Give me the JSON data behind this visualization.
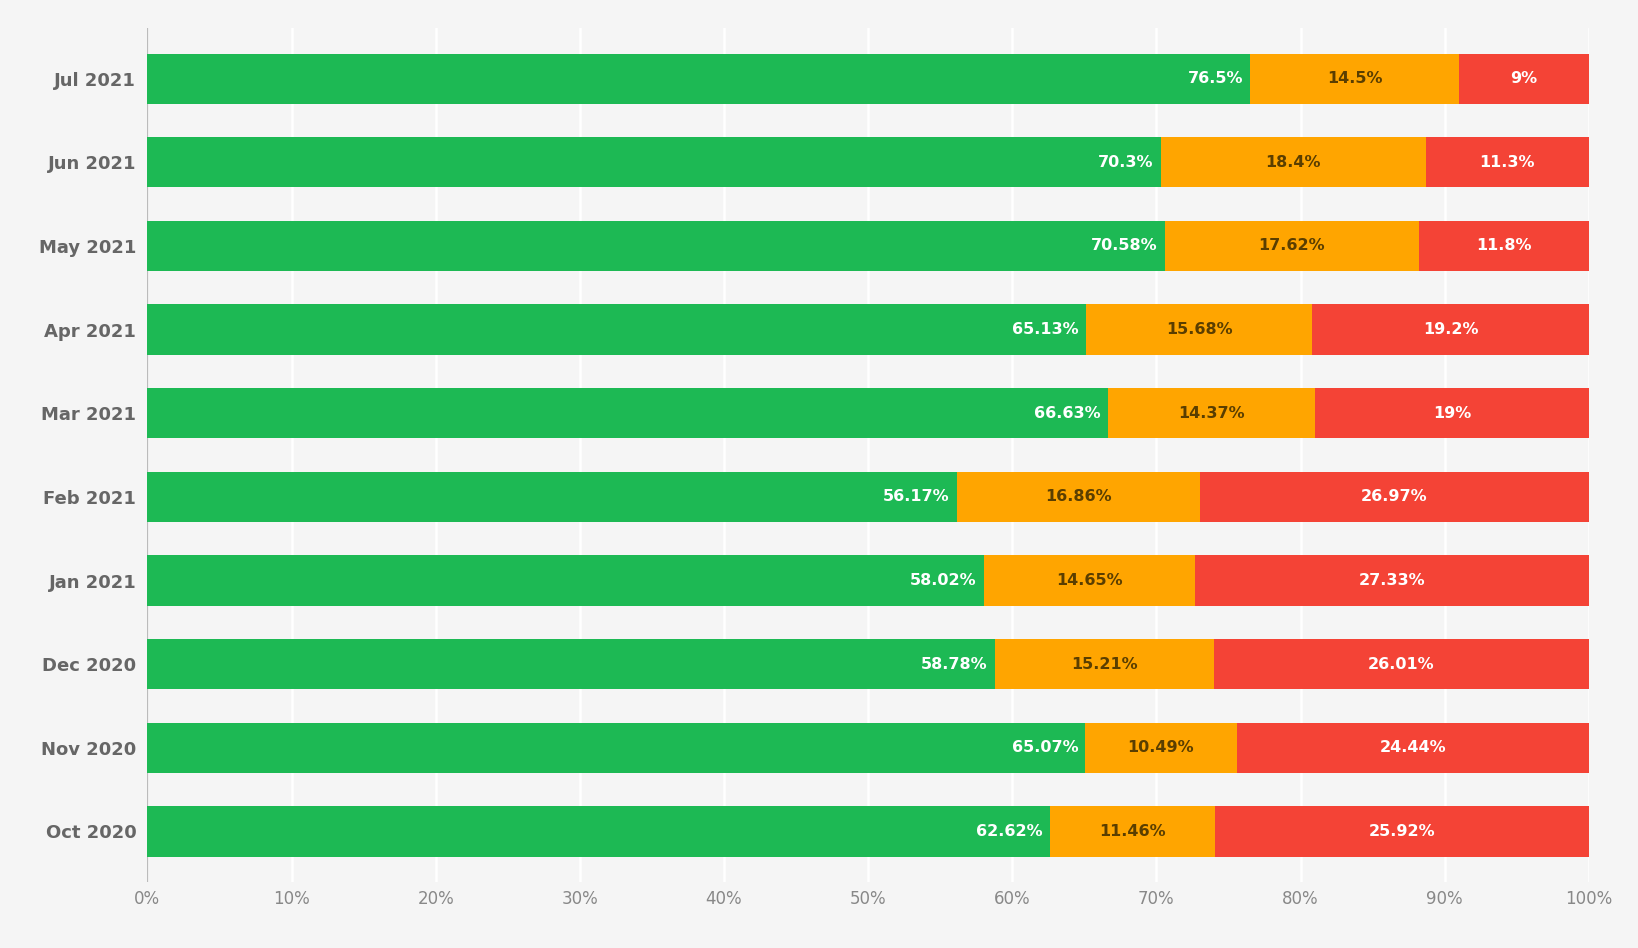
{
  "months": [
    "Oct 2020",
    "Nov 2020",
    "Dec 2020",
    "Jan 2021",
    "Feb 2021",
    "Mar 2021",
    "Apr 2021",
    "May 2021",
    "Jun 2021",
    "Jul 2021"
  ],
  "good": [
    62.62,
    65.07,
    58.78,
    58.02,
    56.17,
    66.63,
    65.13,
    70.58,
    70.3,
    76.5
  ],
  "needs_improvement": [
    11.46,
    10.49,
    15.21,
    14.65,
    16.86,
    14.37,
    15.68,
    17.62,
    18.4,
    14.5
  ],
  "poor": [
    25.92,
    24.44,
    26.01,
    27.33,
    26.97,
    19.0,
    19.2,
    11.8,
    11.3,
    9.0
  ],
  "good_labels": [
    "62.62%",
    "65.07%",
    "58.78%",
    "58.02%",
    "56.17%",
    "66.63%",
    "65.13%",
    "70.58%",
    "70.3%",
    "76.5%"
  ],
  "needs_improvement_labels": [
    "11.46%",
    "10.49%",
    "15.21%",
    "14.65%",
    "16.86%",
    "14.37%",
    "15.68%",
    "17.62%",
    "18.4%",
    "14.5%"
  ],
  "poor_labels": [
    "25.92%",
    "24.44%",
    "26.01%",
    "27.33%",
    "26.97%",
    "19%",
    "19.2%",
    "11.8%",
    "11.3%",
    "9%"
  ],
  "color_good": "#1DB954",
  "color_needs_improvement": "#FFA500",
  "color_poor": "#F44336",
  "background_color": "#F5F5F5",
  "bar_height": 0.6,
  "xlabel_ticks": [
    "0%",
    "10%",
    "20%",
    "30%",
    "40%",
    "50%",
    "60%",
    "70%",
    "80%",
    "90%",
    "100%"
  ],
  "xlabel_vals": [
    0,
    10,
    20,
    30,
    40,
    50,
    60,
    70,
    80,
    90,
    100
  ],
  "text_color_good": "#FFFFFF",
  "text_color_ni": "#5a3e00",
  "text_color_poor": "#FFFFFF",
  "label_fontsize": 11.5,
  "ytick_fontsize": 13,
  "xtick_fontsize": 12,
  "grid_color": "#FFFFFF",
  "grid_linewidth": 1.8
}
